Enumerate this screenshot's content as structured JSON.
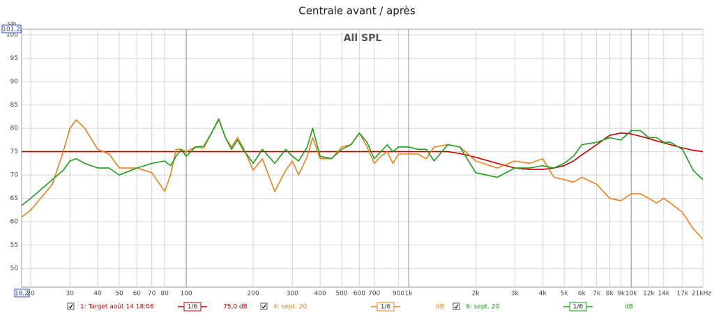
{
  "chart_data": {
    "type": "line",
    "title": "Centrale avant / après",
    "subtitle": "All SPL",
    "y_label": "SPL",
    "log_x": true,
    "grid": true,
    "xlim": [
      18.2,
      21000
    ],
    "ylim": [
      46,
      101.2
    ],
    "xticks": [
      {
        "value": 18.2,
        "label": "18,2"
      },
      20,
      30,
      40,
      50,
      60,
      70,
      80,
      100,
      200,
      300,
      400,
      500,
      600,
      700,
      900,
      {
        "value": 1000,
        "label": "1k"
      },
      {
        "value": 2000,
        "label": "2k"
      },
      {
        "value": 3000,
        "label": "3k"
      },
      {
        "value": 4000,
        "label": "4k"
      },
      {
        "value": 5000,
        "label": "5k"
      },
      {
        "value": 6000,
        "label": "6k"
      },
      {
        "value": 7000,
        "label": "7k"
      },
      {
        "value": 8000,
        "label": "8k"
      },
      {
        "value": 9000,
        "label": "9k"
      },
      {
        "value": 10000,
        "label": "10k"
      },
      {
        "value": 12000,
        "label": "12k"
      },
      {
        "value": 14000,
        "label": "14k"
      },
      {
        "value": 17000,
        "label": "17k"
      },
      {
        "value": 21000,
        "label": "21kHz"
      }
    ],
    "yticks": [
      50,
      55,
      60,
      65,
      70,
      75,
      80,
      85,
      90,
      95,
      100,
      {
        "value": 101.2,
        "label": "101,2"
      }
    ],
    "x": [
      18.2,
      20,
      25,
      28,
      30,
      32,
      35,
      40,
      45,
      50,
      60,
      70,
      80,
      85,
      90,
      95,
      100,
      110,
      120,
      130,
      140,
      150,
      160,
      170,
      180,
      200,
      220,
      250,
      280,
      300,
      320,
      350,
      370,
      400,
      450,
      500,
      550,
      600,
      650,
      700,
      750,
      800,
      850,
      900,
      1000,
      1100,
      1200,
      1300,
      1500,
      1700,
      2000,
      2500,
      3000,
      3500,
      4000,
      4500,
      5000,
      5500,
      6000,
      7000,
      8000,
      9000,
      10000,
      11000,
      12000,
      13000,
      14000,
      15000,
      17000,
      19000,
      21000
    ],
    "series": [
      {
        "name": "1: Target août 14 18:08",
        "color": "#c00000",
        "smoothing": "1/6",
        "legend_value": "75,0 dB",
        "values": [
          75,
          75,
          75,
          75,
          75,
          75,
          75,
          75,
          75,
          75,
          75,
          75,
          75,
          75,
          75,
          75,
          75,
          75,
          75,
          75,
          75,
          75,
          75,
          75,
          75,
          75,
          75,
          75,
          75,
          75,
          75,
          75,
          75,
          75,
          75,
          75,
          75,
          75,
          75,
          75,
          75,
          75,
          75,
          75,
          75,
          75,
          75,
          75,
          75,
          74.6,
          73.8,
          72.5,
          71.5,
          71.2,
          71.2,
          71.5,
          72,
          73,
          74.3,
          76.5,
          78.5,
          79,
          78.8,
          78.3,
          77.8,
          77.3,
          76.9,
          76.5,
          75.8,
          75.3,
          75
        ]
      },
      {
        "name": "4: sept. 20",
        "color": "#e8821e",
        "smoothing": "1/6",
        "legend_value": "dB",
        "values": [
          61,
          62.5,
          68,
          75,
          80,
          81.8,
          80,
          75.5,
          74.5,
          71.5,
          71.5,
          70.5,
          66.5,
          70,
          75.5,
          75.5,
          75,
          76,
          75.8,
          79,
          81.8,
          78,
          76,
          78,
          76,
          71,
          73.5,
          66.5,
          71,
          73,
          70,
          74,
          78,
          73.5,
          73.5,
          76,
          76.5,
          79,
          76,
          72.5,
          74,
          75,
          72.5,
          74.5,
          74.5,
          74.5,
          73.5,
          76,
          76.5,
          76,
          73,
          71.5,
          73,
          72.5,
          73.5,
          69.5,
          69,
          68.5,
          69.5,
          68,
          65,
          64.5,
          66,
          66,
          65,
          64,
          65,
          64,
          62,
          58.5,
          56.3
        ]
      },
      {
        "name": "9: sept. 20",
        "color": "#1f9a1f",
        "smoothing": "1/6",
        "legend_value": "dB",
        "values": [
          63.5,
          65,
          69,
          71,
          73,
          73.5,
          72.5,
          71.5,
          71.5,
          70,
          71.5,
          72.5,
          73,
          72,
          74,
          75.5,
          74,
          76,
          76.2,
          79,
          82,
          78,
          75.5,
          77.5,
          75.5,
          72.5,
          75.5,
          72.5,
          75.5,
          74,
          73,
          76,
          80,
          74,
          73.5,
          75.5,
          76.5,
          79,
          77,
          73.5,
          75,
          76.5,
          75,
          76,
          76,
          75.5,
          75.5,
          73,
          76.5,
          76,
          70.5,
          69.5,
          71.5,
          71.5,
          72,
          71.5,
          72.5,
          74,
          76.5,
          77,
          78,
          77.5,
          79.5,
          79.5,
          78,
          78,
          77,
          77,
          75.5,
          71,
          69
        ]
      }
    ]
  }
}
